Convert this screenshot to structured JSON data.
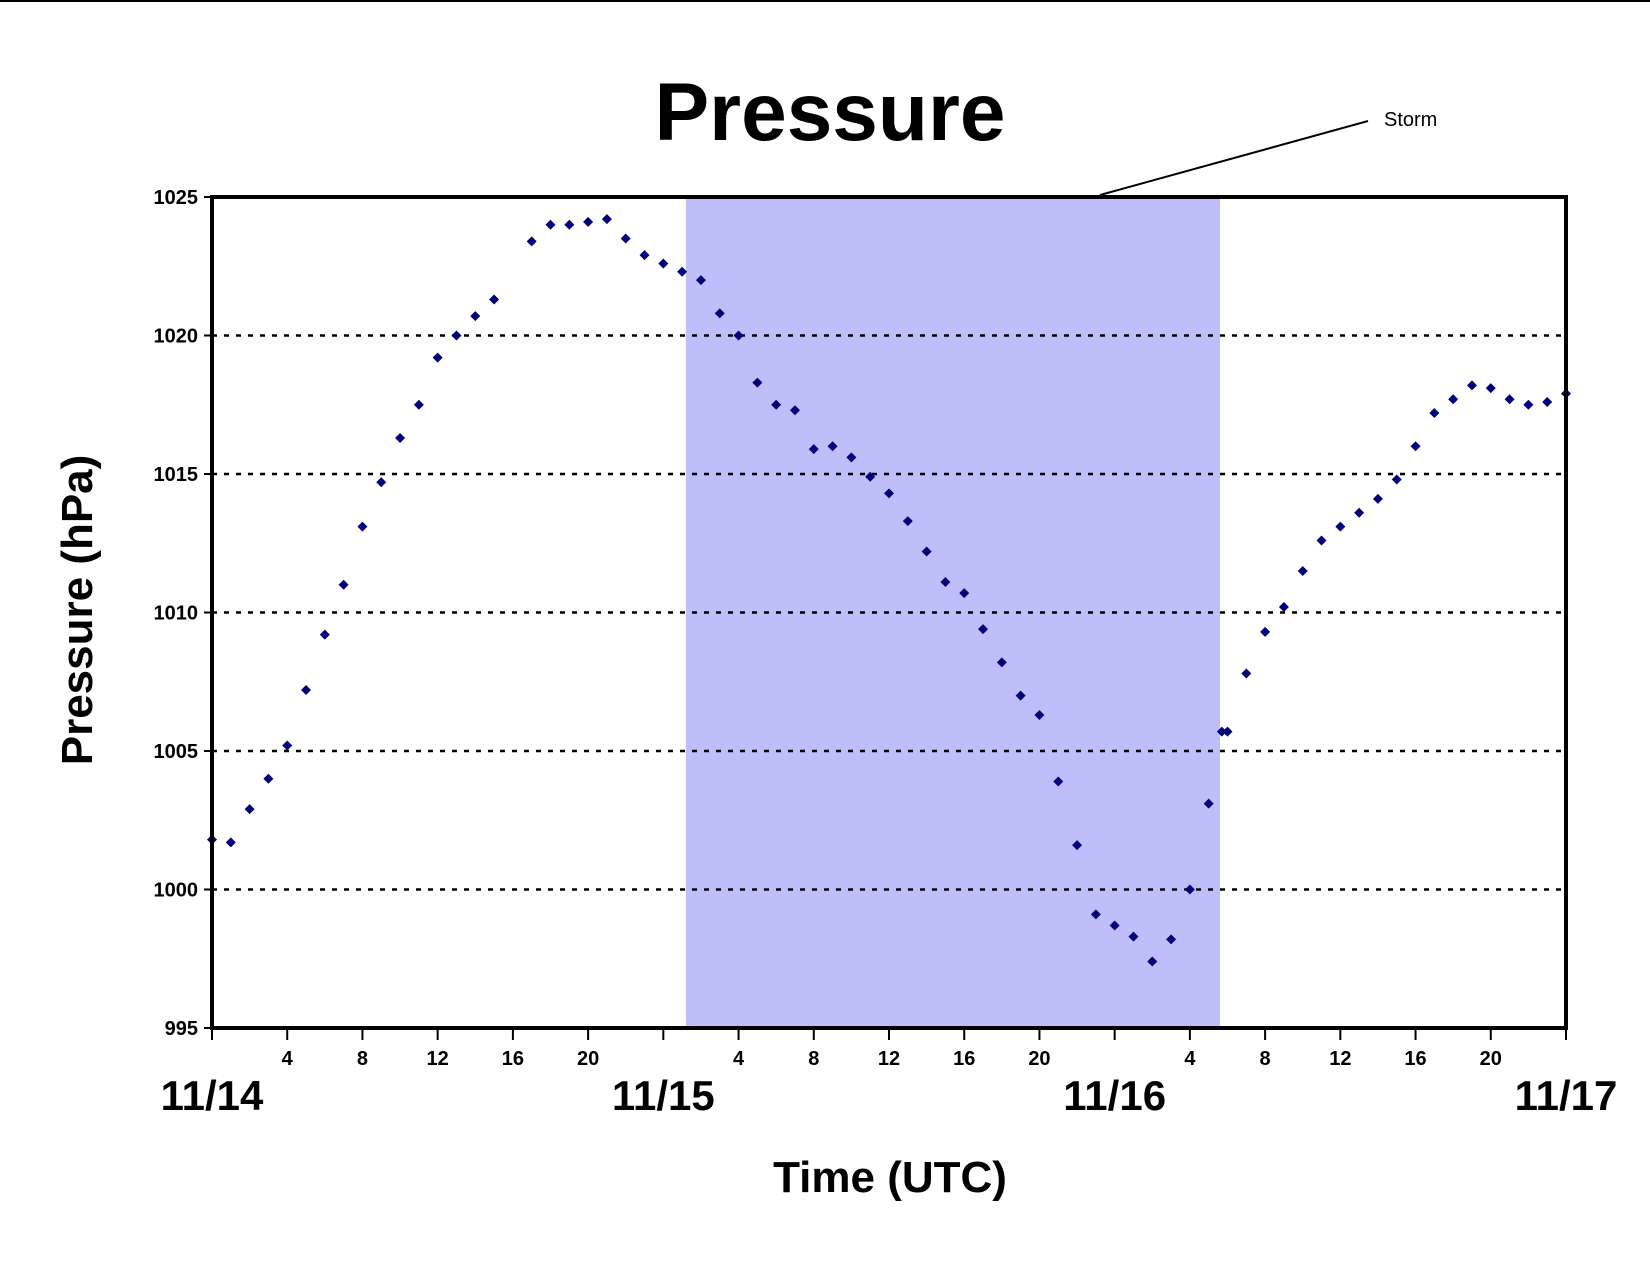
{
  "chart_data": {
    "type": "scatter",
    "title": "Pressure",
    "xlabel": "Time (UTC)",
    "ylabel": "Pressure (hPa)",
    "ylim": [
      995,
      1025
    ],
    "yticks": [
      995,
      1000,
      1005,
      1010,
      1015,
      1020,
      1025
    ],
    "xlim_hours": [
      0,
      72
    ],
    "x_unit": "hours UTC since 11/14 00",
    "grid": "horizontal dotted",
    "legend": "none",
    "marker_color": "#00007a",
    "shade_color": "#bebefb",
    "hour_ticks": [
      {
        "x": 4,
        "label": "4"
      },
      {
        "x": 8,
        "label": "8"
      },
      {
        "x": 12,
        "label": "12"
      },
      {
        "x": 16,
        "label": "16"
      },
      {
        "x": 20,
        "label": "20"
      },
      {
        "x": 28,
        "label": "4"
      },
      {
        "x": 32,
        "label": "8"
      },
      {
        "x": 36,
        "label": "12"
      },
      {
        "x": 40,
        "label": "16"
      },
      {
        "x": 44,
        "label": "20"
      },
      {
        "x": 52,
        "label": "4"
      },
      {
        "x": 56,
        "label": "8"
      },
      {
        "x": 60,
        "label": "12"
      },
      {
        "x": 64,
        "label": "16"
      },
      {
        "x": 68,
        "label": "20"
      }
    ],
    "date_labels": [
      {
        "x": 0,
        "label": "11/14"
      },
      {
        "x": 24,
        "label": "11/15"
      },
      {
        "x": 48,
        "label": "11/16"
      },
      {
        "x": 72,
        "label": "11/17"
      }
    ],
    "shaded_region": {
      "x_start": 25.2,
      "x_end": 53.6,
      "label": "Storm"
    },
    "series": [
      {
        "x": [
          0,
          1,
          2,
          3,
          4,
          5,
          6,
          7,
          8,
          9,
          10,
          11,
          12,
          13,
          14,
          15,
          17,
          18,
          19,
          20,
          21,
          22,
          23,
          24,
          25,
          26,
          27,
          28,
          29,
          30,
          31,
          32,
          33,
          34,
          35,
          36,
          37,
          38,
          39,
          40,
          41,
          42,
          43,
          44,
          45,
          46,
          47,
          48,
          49,
          50,
          51,
          52,
          53,
          53.7,
          54,
          55,
          56,
          57,
          58,
          59,
          60,
          61,
          62,
          63,
          64,
          65,
          66,
          67,
          68,
          69,
          70,
          71,
          72
        ],
        "y": [
          1001.8,
          1001.7,
          1002.9,
          1004.0,
          1005.2,
          1007.2,
          1009.2,
          1011.0,
          1013.1,
          1014.7,
          1016.3,
          1017.5,
          1019.2,
          1020.0,
          1020.7,
          1021.3,
          1023.4,
          1024.0,
          1024.0,
          1024.1,
          1024.2,
          1023.5,
          1022.9,
          1022.6,
          1022.3,
          1022.0,
          1020.8,
          1020.0,
          1018.3,
          1017.5,
          1017.3,
          1015.9,
          1016.0,
          1015.6,
          1014.9,
          1014.3,
          1013.3,
          1012.2,
          1011.1,
          1010.7,
          1009.4,
          1008.2,
          1007.0,
          1006.3,
          1003.9,
          1001.6,
          999.1,
          998.7,
          998.3,
          997.4,
          998.2,
          1000.0,
          1003.1,
          1005.7,
          1005.7,
          1007.8,
          1009.3,
          1010.2,
          1011.5,
          1012.6,
          1013.1,
          1013.6,
          1014.1,
          1014.8,
          1016.0,
          1017.2,
          1017.7,
          1018.2,
          1018.1,
          1017.7,
          1017.5,
          1017.6,
          1017.9
        ]
      }
    ]
  }
}
